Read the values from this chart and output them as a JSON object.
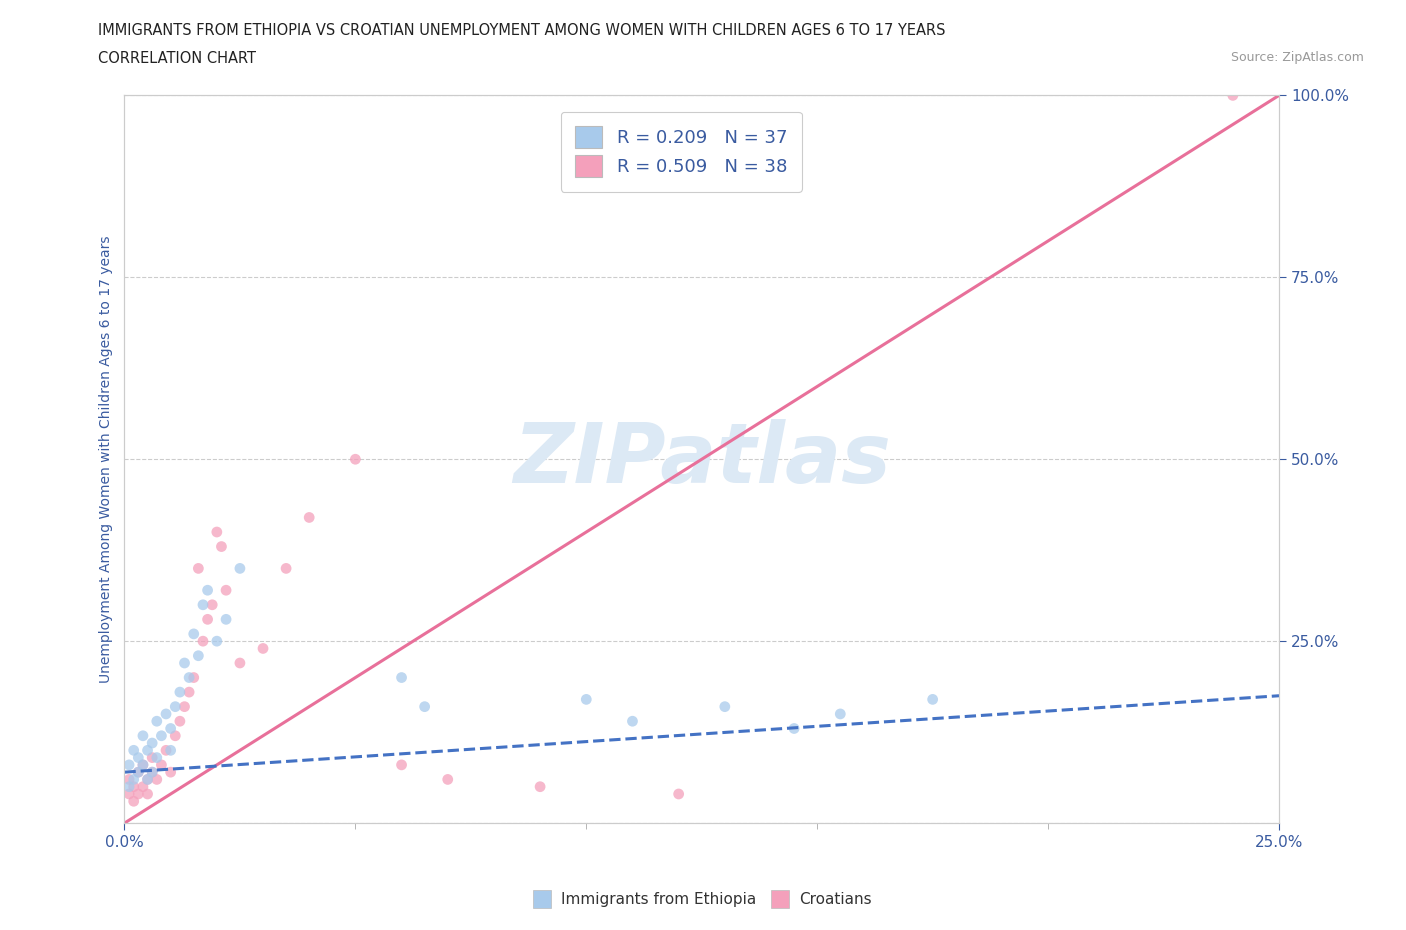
{
  "title_line1": "IMMIGRANTS FROM ETHIOPIA VS CROATIAN UNEMPLOYMENT AMONG WOMEN WITH CHILDREN AGES 6 TO 17 YEARS",
  "title_line2": "CORRELATION CHART",
  "source_text": "Source: ZipAtlas.com",
  "ylabel_label": "Unemployment Among Women with Children Ages 6 to 17 years",
  "legend_label1": "Immigrants from Ethiopia",
  "legend_label2": "Croatians",
  "R1": 0.209,
  "N1": 37,
  "R2": 0.509,
  "N2": 38,
  "color_blue": "#A8CAEB",
  "color_pink": "#F4A0BB",
  "color_text_blue": "#3A5BA0",
  "color_trendline_blue": "#4472C4",
  "color_trendline_pink": "#E8709A",
  "color_watermark": "#DCE9F5",
  "background_color": "#FFFFFF",
  "grid_color": "#CCCCCC",
  "xmin": 0.0,
  "xmax": 0.25,
  "ymin": 0.0,
  "ymax": 1.0,
  "marker_size": 60,
  "marker_alpha": 0.75,
  "trend_blue_x0": 0.0,
  "trend_blue_y0": 0.07,
  "trend_blue_x1": 0.25,
  "trend_blue_y1": 0.175,
  "trend_pink_x0": -0.002,
  "trend_pink_y0": -0.008,
  "trend_pink_x1": 0.25,
  "trend_pink_y1": 1.0,
  "ethiopia_x": [
    0.001,
    0.001,
    0.002,
    0.002,
    0.003,
    0.003,
    0.004,
    0.004,
    0.005,
    0.005,
    0.006,
    0.006,
    0.007,
    0.007,
    0.008,
    0.009,
    0.01,
    0.01,
    0.011,
    0.012,
    0.013,
    0.014,
    0.015,
    0.016,
    0.017,
    0.018,
    0.02,
    0.022,
    0.025,
    0.06,
    0.065,
    0.1,
    0.11,
    0.13,
    0.145,
    0.155,
    0.175
  ],
  "ethiopia_y": [
    0.05,
    0.08,
    0.06,
    0.1,
    0.07,
    0.09,
    0.08,
    0.12,
    0.06,
    0.1,
    0.11,
    0.07,
    0.09,
    0.14,
    0.12,
    0.15,
    0.1,
    0.13,
    0.16,
    0.18,
    0.22,
    0.2,
    0.26,
    0.23,
    0.3,
    0.32,
    0.25,
    0.28,
    0.35,
    0.2,
    0.16,
    0.17,
    0.14,
    0.16,
    0.13,
    0.15,
    0.17
  ],
  "croatian_x": [
    0.001,
    0.001,
    0.002,
    0.002,
    0.003,
    0.003,
    0.004,
    0.004,
    0.005,
    0.005,
    0.006,
    0.006,
    0.007,
    0.008,
    0.009,
    0.01,
    0.011,
    0.012,
    0.013,
    0.014,
    0.015,
    0.016,
    0.017,
    0.018,
    0.019,
    0.02,
    0.021,
    0.022,
    0.025,
    0.03,
    0.035,
    0.04,
    0.05,
    0.06,
    0.07,
    0.09,
    0.12,
    0.24
  ],
  "croatian_y": [
    0.04,
    0.06,
    0.05,
    0.03,
    0.07,
    0.04,
    0.05,
    0.08,
    0.06,
    0.04,
    0.07,
    0.09,
    0.06,
    0.08,
    0.1,
    0.07,
    0.12,
    0.14,
    0.16,
    0.18,
    0.2,
    0.35,
    0.25,
    0.28,
    0.3,
    0.4,
    0.38,
    0.32,
    0.22,
    0.24,
    0.35,
    0.42,
    0.5,
    0.08,
    0.06,
    0.05,
    0.04,
    1.0
  ]
}
